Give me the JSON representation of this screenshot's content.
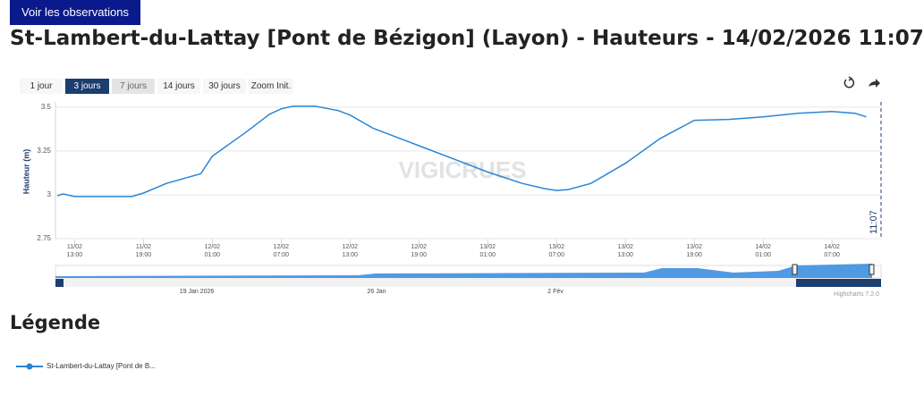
{
  "header": {
    "button": "Voir les observations",
    "title": "St-Lambert-du-Lattay [Pont de Bézigon] (Layon) - Hauteurs - 14/02/2026 11:07"
  },
  "range_buttons": [
    "1 jour",
    "3 jours",
    "7 jours",
    "14 jours",
    "30 jours",
    "Zoom Init."
  ],
  "chart_data": {
    "type": "line",
    "y_label": "Hauteur (m)",
    "watermark": "VIGICRUES",
    "annotation": "11:07",
    "xlim": [
      "11/02 11:20",
      "14/02 11:10"
    ],
    "xticks": [
      {
        "value": "11/02 13:00",
        "label": "11/02\n13:00"
      },
      {
        "value": "11/02 19:00",
        "label": "11/02\n19:00"
      },
      {
        "value": "12/02 01:00",
        "label": "12/02\n01:00"
      },
      {
        "value": "12/02 07:00",
        "label": "12/02\n07:00"
      },
      {
        "value": "12/02 13:00",
        "label": "12/02\n13:00"
      },
      {
        "value": "12/02 19:00",
        "label": "12/02\n19:00"
      },
      {
        "value": "13/02 01:00",
        "label": "13/02\n01:00"
      },
      {
        "value": "13/02 07:00",
        "label": "13/02\n07:00"
      },
      {
        "value": "13/02 13:00",
        "label": "13/02\n13:00"
      },
      {
        "value": "13/02 19:00",
        "label": "13/02\n19:00"
      },
      {
        "value": "14/02 01:00",
        "label": "14/02\n01:00"
      },
      {
        "value": "14/02 07:00",
        "label": "14/02\n07:00"
      }
    ],
    "ylim": [
      2.75,
      3.53
    ],
    "yticks": [
      2.75,
      3,
      3.25,
      3.5
    ],
    "grid": true,
    "x": [
      "11/02 11:30",
      "11/02 12:00",
      "11/02 13:00",
      "11/02 16:00",
      "11/02 18:00",
      "11/02 19:00",
      "11/02 21:00",
      "12/02 00:00",
      "12/02 01:00",
      "12/02 04:00",
      "12/02 06:00",
      "12/02 07:00",
      "12/02 08:00",
      "12/02 10:00",
      "12/02 12:00",
      "12/02 13:00",
      "12/02 15:00",
      "12/02 18:00",
      "12/02 19:00",
      "12/02 22:00",
      "13/02 01:00",
      "13/02 04:00",
      "13/02 06:00",
      "13/02 07:00",
      "13/02 08:00",
      "13/02 10:00",
      "13/02 13:00",
      "13/02 16:00",
      "13/02 19:00",
      "13/02 22:00",
      "14/02 01:00",
      "14/02 04:00",
      "14/02 07:00",
      "14/02 09:00",
      "14/02 10:00"
    ],
    "series": [
      {
        "name": "St-Lambert-du-Lattay [Pont de B...",
        "color": "#2b86d6",
        "values": [
          2.995,
          3.005,
          2.99,
          2.99,
          2.99,
          3.01,
          3.065,
          3.12,
          3.22,
          3.36,
          3.46,
          3.49,
          3.505,
          3.505,
          3.48,
          3.455,
          3.38,
          3.305,
          3.28,
          3.205,
          3.13,
          3.065,
          3.035,
          3.025,
          3.03,
          3.065,
          3.18,
          3.32,
          3.425,
          3.43,
          3.445,
          3.465,
          3.475,
          3.465,
          3.445
        ]
      }
    ]
  },
  "navigator": {
    "labels": [
      "19 Jan 2026",
      "26 Jan",
      "2 Fév"
    ],
    "credit": "Highcharts 7.2.0"
  },
  "legend": {
    "title": "Légende"
  }
}
